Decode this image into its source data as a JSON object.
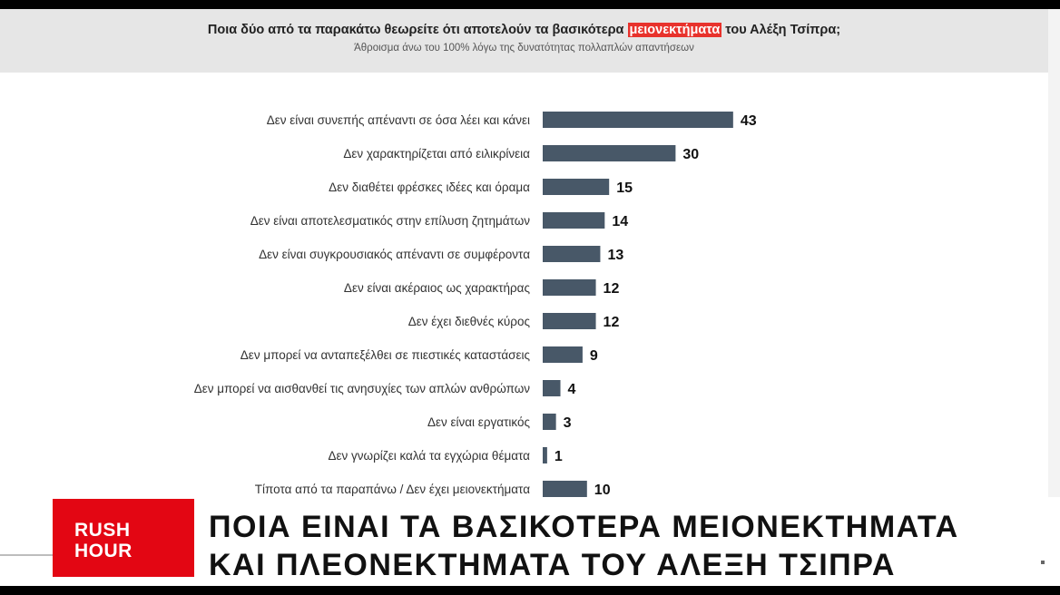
{
  "title": {
    "before": "Ποια δύο από τα παρακάτω θεωρείτε ότι αποτελούν τα βασικότερα ",
    "highlight": "μειονεκτήματα",
    "after": " του Αλέξη Τσίπρα;"
  },
  "subtitle": "Άθροισμα άνω του 100% λόγω της δυνατότητας πολλαπλών απαντήσεων",
  "chart_data": {
    "type": "bar",
    "orientation": "horizontal",
    "title": "Ποια δύο από τα παρακάτω θεωρείτε ότι αποτελούν τα βασικότερα μειονεκτήματα του Αλέξη Τσίπρα;",
    "categories": [
      "Δεν είναι συνεπής απέναντι σε όσα λέει και κάνει",
      "Δεν χαρακτηρίζεται από ειλικρίνεια",
      "Δεν διαθέτει φρέσκες ιδέες και όραμα",
      "Δεν είναι αποτελεσματικός στην επίλυση ζητημάτων",
      "Δεν είναι συγκρουσιακός απέναντι σε συμφέροντα",
      "Δεν είναι ακέραιος ως χαρακτήρας",
      "Δεν έχει διεθνές κύρος",
      "Δεν μπορεί να ανταπεξέλθει σε πιεστικές καταστάσεις",
      "Δεν μπορεί να αισθανθεί τις ανησυχίες των απλών ανθρώπων",
      "Δεν είναι εργατικός",
      "Δεν γνωρίζει καλά τα εγχώρια θέματα",
      "Τίποτα από τα παραπάνω / Δεν έχει μειονεκτήματα"
    ],
    "values": [
      43,
      30,
      15,
      14,
      13,
      12,
      12,
      9,
      4,
      3,
      1,
      10
    ],
    "bar_color": "#485868",
    "grid": false
  },
  "lower_third": {
    "logo_line1": "RUSH",
    "logo_line2": "HOUR",
    "headline_line1": "ΠΟΙΑ ΕΙΝΑΙ ΤΑ ΒΑΣΙΚΟΤΕΡΑ ΜΕΙΟΝΕΚΤΗΜΑΤΑ",
    "headline_line2": "ΚΑΙ ΠΛΕΟΝΕΚΤΗΜΑΤΑ ΤΟΥ ΑΛΕΞΗ ΤΣΙΠΡΑ",
    "brand_color": "#e30613"
  }
}
